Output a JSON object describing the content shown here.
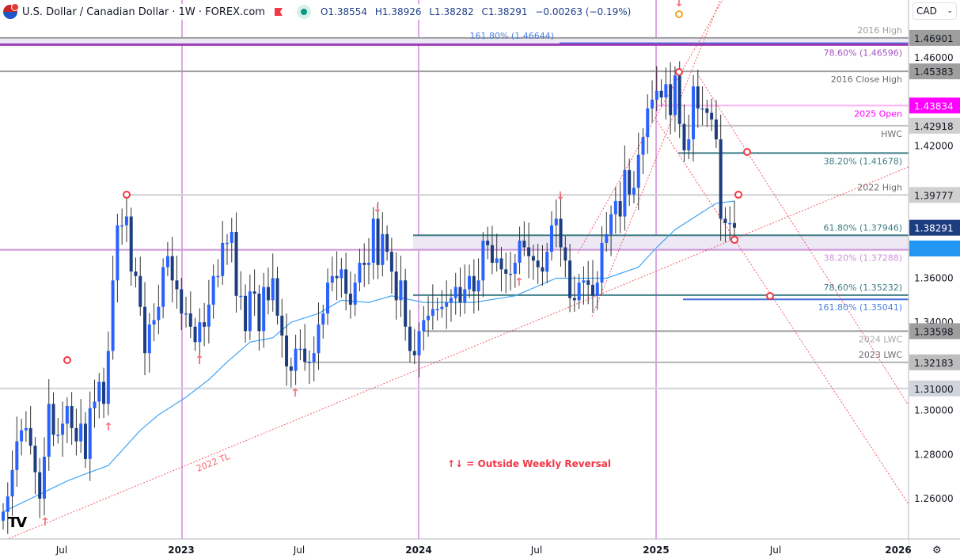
{
  "header": {
    "symbol_title": "U.S. Dollar / Canadian Dollar · 1W · FOREX.com",
    "open": "O1.38554",
    "high": "H1.38926",
    "low": "L1.38282",
    "close": "C1.38291",
    "change": "−0.00263 (−0.19%)",
    "flag_icon": "us-canada-flag-icon",
    "market_status_icon": "market-closed-flag-icon",
    "live_icon": "data-live-dot-icon"
  },
  "currency_selector": {
    "value": "CAD"
  },
  "footer": {
    "logo": "TV",
    "settings_icon": "gear-icon"
  },
  "colors": {
    "bull": "#2962ff",
    "bear": "#1c3d80",
    "ma": "#42a5f5",
    "trendline": "#f23645",
    "year_divider": "#b020c0"
  },
  "chart_data": {
    "type": "candlestick",
    "interval": "1W",
    "grid": false,
    "ylim": [
      1.24,
      1.475
    ],
    "x_ticks": [
      {
        "label": "Jul",
        "bold": false
      },
      {
        "label": "2023",
        "bold": true
      },
      {
        "label": "Jul",
        "bold": false
      },
      {
        "label": "2024",
        "bold": true
      },
      {
        "label": "Jul",
        "bold": false
      },
      {
        "label": "2025",
        "bold": true
      },
      {
        "label": "Jul",
        "bold": false
      },
      {
        "label": "2026",
        "bold": true
      }
    ],
    "y_ticks": [
      "1.46000",
      "1.42000",
      "1.36000",
      "1.34000",
      "1.30000",
      "1.28000",
      "1.26000"
    ],
    "first_open": 1.25,
    "closes": [
      1.254,
      1.261,
      1.273,
      1.286,
      1.291,
      1.292,
      1.284,
      1.272,
      1.26,
      1.279,
      1.303,
      1.289,
      1.289,
      1.294,
      1.302,
      1.292,
      1.286,
      1.294,
      1.278,
      1.301,
      1.304,
      1.313,
      1.303,
      1.327,
      1.359,
      1.384,
      1.384,
      1.388,
      1.363,
      1.361,
      1.347,
      1.326,
      1.339,
      1.341,
      1.347,
      1.365,
      1.37,
      1.359,
      1.355,
      1.344,
      1.344,
      1.338,
      1.331,
      1.34,
      1.338,
      1.348,
      1.361,
      1.361,
      1.376,
      1.376,
      1.381,
      1.352,
      1.352,
      1.336,
      1.354,
      1.353,
      1.336,
      1.356,
      1.35,
      1.36,
      1.343,
      1.334,
      1.32,
      1.318,
      1.328,
      1.328,
      1.322,
      1.322,
      1.326,
      1.339,
      1.344,
      1.358,
      1.361,
      1.36,
      1.364,
      1.353,
      1.348,
      1.358,
      1.367,
      1.366,
      1.367,
      1.387,
      1.366,
      1.38,
      1.372,
      1.363,
      1.35,
      1.359,
      1.338,
      1.327,
      1.325,
      1.336,
      1.341,
      1.343,
      1.346,
      1.346,
      1.347,
      1.349,
      1.351,
      1.356,
      1.349,
      1.355,
      1.361,
      1.354,
      1.359,
      1.377,
      1.375,
      1.367,
      1.369,
      1.364,
      1.362,
      1.362,
      1.367,
      1.377,
      1.374,
      1.37,
      1.368,
      1.365,
      1.363,
      1.372,
      1.384,
      1.387,
      1.374,
      1.368,
      1.351,
      1.35,
      1.358,
      1.359,
      1.357,
      1.352,
      1.358,
      1.376,
      1.38,
      1.389,
      1.395,
      1.388,
      1.409,
      1.398,
      1.401,
      1.416,
      1.424,
      1.437,
      1.441,
      1.445,
      1.442,
      1.448,
      1.434,
      1.452,
      1.43,
      1.418,
      1.423,
      1.447,
      1.437,
      1.437,
      1.435,
      1.432,
      1.423,
      1.387,
      1.385,
      1.385,
      1.38291
    ],
    "moving_average": [
      [
        0,
        1.254
      ],
      [
        8,
        1.262
      ],
      [
        14,
        1.268
      ],
      [
        19,
        1.272
      ],
      [
        23,
        1.275
      ],
      [
        30,
        1.291
      ],
      [
        34,
        1.298
      ],
      [
        40,
        1.306
      ],
      [
        45,
        1.314
      ],
      [
        49,
        1.322
      ],
      [
        54,
        1.331
      ],
      [
        59,
        1.333
      ],
      [
        63,
        1.34
      ],
      [
        69,
        1.344
      ],
      [
        74,
        1.35
      ],
      [
        80,
        1.349
      ],
      [
        85,
        1.352
      ],
      [
        92,
        1.349
      ],
      [
        103,
        1.349
      ],
      [
        112,
        1.352
      ],
      [
        121,
        1.36
      ],
      [
        132,
        1.36
      ],
      [
        139,
        1.365
      ],
      [
        143,
        1.374
      ],
      [
        147,
        1.382
      ],
      [
        156,
        1.394
      ],
      [
        160,
        1.395
      ]
    ],
    "levels": [
      {
        "id": "l1",
        "value": "1.46901",
        "label": "2016 High",
        "line": "#9e9e9e",
        "text": "#9e9e9e",
        "box": "#9e9e9e",
        "box_text": "#131722"
      },
      {
        "id": "l2",
        "value": "1.46644",
        "label": "161.80% (1.46644)",
        "line": "#3f6fd8",
        "text": "#4a7fe0",
        "box": "",
        "box_text": ""
      },
      {
        "id": "l3",
        "value": "1.46596",
        "label": "78.60% (1.46596)",
        "line": "#9c3cb8",
        "text": "#a653c2",
        "box": "",
        "box_text": ""
      },
      {
        "id": "l4",
        "value": "1.45383",
        "label": "2016 Close High",
        "line": "#9e9e9e",
        "text": "#6b6b6b",
        "box": "#9e9e9e",
        "box_text": "#131722"
      },
      {
        "id": "l5",
        "value": "1.43834",
        "label": "2025 Open",
        "line": "#ffb3f5",
        "text": "#ff00ff",
        "box": "#ff00ff",
        "box_text": "#ffffff"
      },
      {
        "id": "l6",
        "value": "1.42918",
        "label": "HWC",
        "line": "#c4c4c4",
        "text": "#6b6b6b",
        "box": "#cfcfcf",
        "box_text": "#131722"
      },
      {
        "id": "l7",
        "value": "1.41678",
        "label": "38.20% (1.41678)",
        "line": "#3e7d86",
        "text": "#3e7d86",
        "box": "",
        "box_text": ""
      },
      {
        "id": "l8",
        "value": "1.39777",
        "label": "2022 High",
        "line": "#cfcfcf",
        "text": "#6b6b6b",
        "box": "#d0d0d0",
        "box_text": "#131722"
      },
      {
        "id": "l9",
        "value": "1.37946",
        "label": "61.80% (1.37946)",
        "line": "#3e7d86",
        "text": "#3e7d86",
        "box": "",
        "box_text": ""
      },
      {
        "id": "l10",
        "value": "1.37288",
        "label": "38.20% (1.37288)",
        "line": "#ce93d8",
        "text": "#ce93d8",
        "box": "",
        "box_text": ""
      },
      {
        "id": "l11",
        "value": "1.35232",
        "label": "78.60% (1.35232)",
        "line": "#3e7d86",
        "text": "#3e7d86",
        "box": "",
        "box_text": ""
      },
      {
        "id": "l12",
        "value": "1.35041",
        "label": "161.80% (1.35041)",
        "line": "#3f6fd8",
        "text": "#4a7fe0",
        "box": "",
        "box_text": ""
      },
      {
        "id": "l13",
        "value": "1.33598",
        "label": "2024 LWC",
        "line": "#9e9e9e",
        "text": "#a8a8a8",
        "box": "#9e9e9e",
        "box_text": "#131722"
      },
      {
        "id": "l14",
        "value": "1.32183",
        "label": "2023 LWC",
        "line": "#b3b3b3",
        "text": "#6b6b6b",
        "box": "#bdbdbd",
        "box_text": "#131722"
      },
      {
        "id": "l15",
        "value": "1.31000",
        "label": "",
        "line": "#d1d4dc",
        "text": "",
        "box": "#d1d4dc",
        "box_text": "#131722"
      }
    ],
    "last_price": {
      "value": "1.38291",
      "box": "#1c3d80",
      "box_text": "#ffffff"
    },
    "ma_price_box": {
      "box": "#2196f3"
    },
    "trendline_label": "2022 TL",
    "legend_note": "↑↓ = Outside Weekly Reversal"
  }
}
